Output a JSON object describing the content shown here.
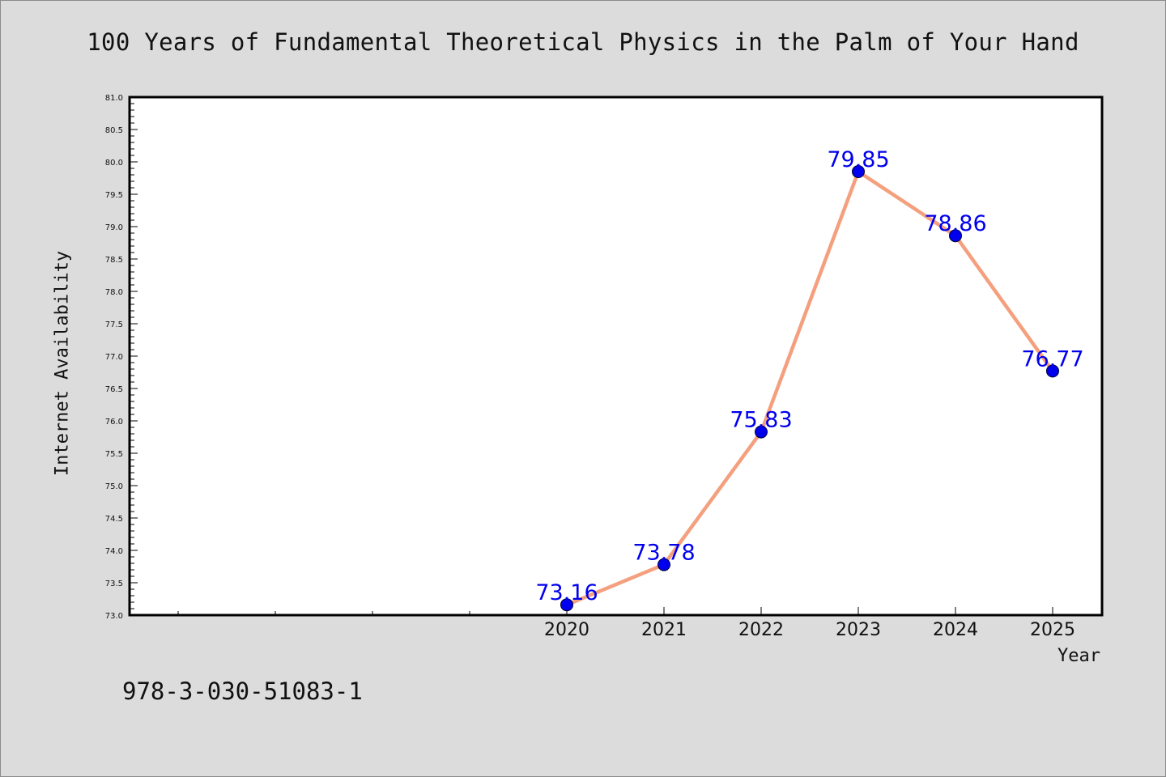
{
  "chart_data": {
    "type": "line",
    "title": "100 Years of Fundamental Theoretical Physics in the Palm of Your Hand",
    "xlabel": "Year",
    "ylabel": "Internet Availability",
    "x": [
      "2020",
      "2021",
      "2022",
      "2023",
      "2024",
      "2025"
    ],
    "series": [
      {
        "values": [
          73.16,
          73.78,
          75.83,
          79.85,
          78.86,
          76.77
        ]
      }
    ],
    "data_labels": [
      "73.16",
      "73.78",
      "75.83",
      "79.85",
      "78.86",
      "76.77"
    ],
    "ylim": [
      73.0,
      81.0
    ],
    "yticks": [
      "73.0",
      "73.5",
      "74.0",
      "74.5",
      "75.0",
      "75.5",
      "76.0",
      "76.5",
      "77.0",
      "77.5",
      "78.0",
      "78.5",
      "79.0",
      "79.5",
      "80.0",
      "80.5",
      "81.0"
    ],
    "grid": false,
    "legend": "none",
    "colors": {
      "line": "#f4a07e",
      "marker": "#0000ee",
      "label": "#0000ee",
      "background": "#dcdcdc",
      "plot_area": "#ffffff"
    }
  },
  "footer": {
    "isbn": "978-3-030-51083-1"
  }
}
